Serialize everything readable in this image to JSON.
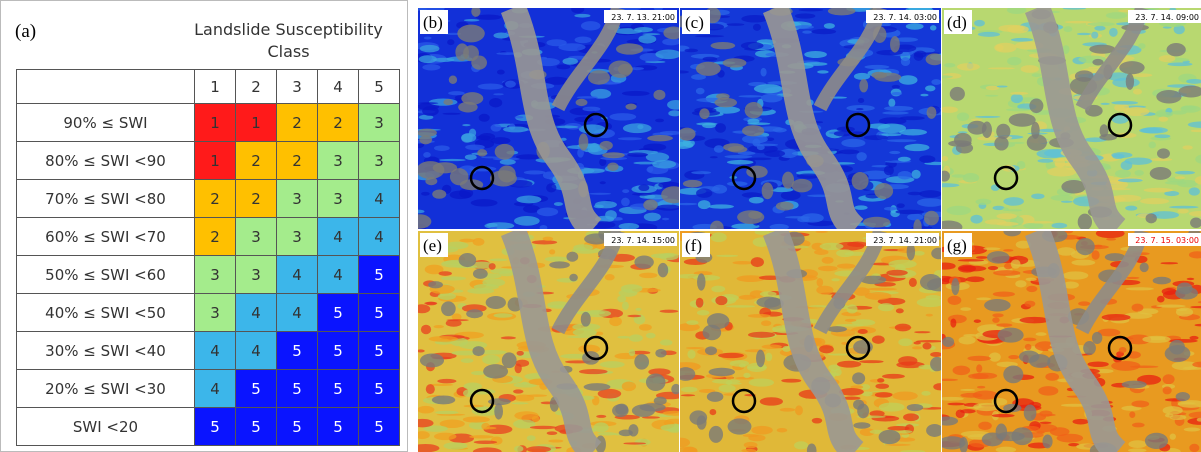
{
  "panel_a": {
    "label": "(a)",
    "title": "Landslide Susceptibility Class",
    "header": [
      "1",
      "2",
      "3",
      "4",
      "5"
    ],
    "rows": [
      {
        "label": "90% ≤ SWI",
        "cells": [
          1,
          1,
          2,
          2,
          3
        ]
      },
      {
        "label": "80% ≤ SWI <90",
        "cells": [
          1,
          2,
          2,
          3,
          3
        ]
      },
      {
        "label": "70% ≤ SWI <80",
        "cells": [
          2,
          2,
          3,
          3,
          4
        ]
      },
      {
        "label": "60% ≤ SWI <70",
        "cells": [
          2,
          3,
          3,
          4,
          4
        ]
      },
      {
        "label": "50% ≤ SWI <60",
        "cells": [
          3,
          3,
          4,
          4,
          5
        ]
      },
      {
        "label": "40% ≤ SWI <50",
        "cells": [
          3,
          4,
          4,
          5,
          5
        ]
      },
      {
        "label": "30% ≤ SWI <40",
        "cells": [
          4,
          4,
          5,
          5,
          5
        ]
      },
      {
        "label": "20% ≤ SWI <30",
        "cells": [
          4,
          5,
          5,
          5,
          5
        ]
      },
      {
        "label": "SWI <20",
        "cells": [
          5,
          5,
          5,
          5,
          5
        ]
      }
    ],
    "class_colors": {
      "1": "#ff1a1a",
      "2": "#ffc000",
      "3": "#a4ec8c",
      "4": "#3cb6ea",
      "5": "#0a14ff"
    }
  },
  "maps": [
    {
      "label": "(b)",
      "timestamp": "23. 7. 13. 21:00"
    },
    {
      "label": "(c)",
      "timestamp": "23. 7. 14. 03:00"
    },
    {
      "label": "(d)",
      "timestamp": "23. 7. 14. 09:00"
    },
    {
      "label": "(e)",
      "timestamp": "23. 7. 14. 15:00"
    },
    {
      "label": "(f)",
      "timestamp": "23. 7. 14. 21:00"
    },
    {
      "label": "(g)",
      "timestamp": "23. 7. 15. 03:00"
    }
  ]
}
